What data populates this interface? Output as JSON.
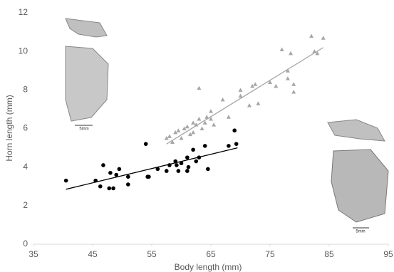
{
  "chart_data": {
    "type": "scatter",
    "x_label": "Body length (mm)",
    "y_label": "Horn length (mm)",
    "xlim": [
      35,
      95
    ],
    "xticks": [
      35,
      45,
      55,
      65,
      75,
      85,
      95
    ],
    "ylim": [
      0,
      12
    ],
    "yticks": [
      0,
      2,
      4,
      6,
      8,
      10,
      12
    ],
    "grid": false,
    "annotations": [
      "5mm",
      "5mm"
    ],
    "series": [
      {
        "marker": "circle",
        "color": "#000000",
        "x": [
          40.5,
          45.5,
          46.3,
          46.8,
          47.8,
          48,
          48.5,
          49,
          49.5,
          51,
          51,
          54,
          54.5,
          54.3,
          56,
          57.5,
          58,
          59,
          59.2,
          60,
          59.5,
          61,
          61.2,
          61,
          62,
          62.5,
          63,
          64,
          64.5,
          68,
          69,
          69.3
        ],
        "values": [
          3.3,
          3.3,
          3.0,
          4.1,
          2.9,
          3.7,
          2.9,
          3.6,
          3.9,
          3.5,
          3.1,
          5.2,
          3.5,
          3.5,
          3.9,
          3.8,
          4.1,
          4.3,
          4.1,
          4.2,
          3.8,
          4.5,
          4.0,
          3.8,
          4.9,
          4.3,
          4.5,
          5.1,
          3.9,
          5.1,
          5.9,
          5.2
        ],
        "trendline": {
          "x": [
            40.5,
            69.5
          ],
          "y": [
            2.85,
            5.0
          ],
          "color": "#000000"
        }
      },
      {
        "marker": "triangle",
        "color": "#a6a6a6",
        "x": [
          57.5,
          58,
          58.5,
          59,
          59.5,
          60,
          60.5,
          61,
          61.5,
          62,
          62,
          62.5,
          63,
          63,
          63.5,
          64,
          64.3,
          65,
          65.5,
          65,
          67,
          68,
          70,
          70,
          71.5,
          72,
          72.5,
          73,
          75,
          76,
          77,
          78,
          78,
          79,
          79,
          78.5,
          82,
          82.5,
          83,
          84
        ],
        "values": [
          5.5,
          5.6,
          5.3,
          5.8,
          5.9,
          5.5,
          6.0,
          6.1,
          5.7,
          6.3,
          5.8,
          6.2,
          8.1,
          6.5,
          6.0,
          6.3,
          6.6,
          6.9,
          6.2,
          6.5,
          7.5,
          6.6,
          7.7,
          8.0,
          7.2,
          8.2,
          8.3,
          7.3,
          8.4,
          8.2,
          10.1,
          9.0,
          8.6,
          7.9,
          8.3,
          9.9,
          10.8,
          10.0,
          9.9,
          10.7
        ],
        "trendline": {
          "x": [
            57.5,
            84
          ],
          "y": [
            5.2,
            10.2
          ],
          "color": "#a6a6a6"
        }
      }
    ]
  }
}
